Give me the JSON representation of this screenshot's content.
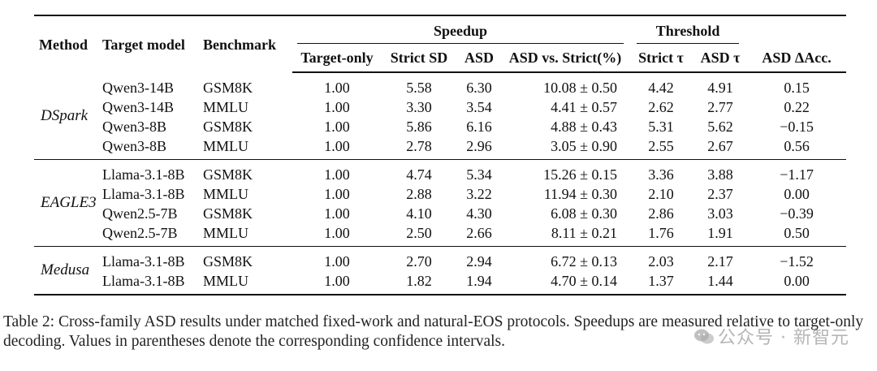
{
  "table": {
    "headers": {
      "method": "Method",
      "target_model": "Target model",
      "benchmark": "Benchmark",
      "speedup_group": "Speedup",
      "threshold_group": "Threshold",
      "target_only": "Target-only",
      "strict_sd": "Strict SD",
      "asd": "ASD",
      "asd_vs_strict": "ASD vs. Strict(%)",
      "strict_tau": "Strict τ",
      "asd_tau": "ASD τ",
      "asd_delta_acc": "ASD ΔAcc."
    },
    "groups": [
      {
        "method": "DSpark",
        "rows": [
          {
            "model": "Qwen3-14B",
            "bench": "GSM8K",
            "target_only": "1.00",
            "strict_sd": "5.58",
            "asd": "6.30",
            "asd_vs_strict": "10.08 ± 0.50",
            "strict_tau": "4.42",
            "asd_tau": "4.91",
            "delta_acc": "0.15"
          },
          {
            "model": "Qwen3-14B",
            "bench": "MMLU",
            "target_only": "1.00",
            "strict_sd": "3.30",
            "asd": "3.54",
            "asd_vs_strict": "4.41 ± 0.57",
            "strict_tau": "2.62",
            "asd_tau": "2.77",
            "delta_acc": "0.22"
          },
          {
            "model": "Qwen3-8B",
            "bench": "GSM8K",
            "target_only": "1.00",
            "strict_sd": "5.86",
            "asd": "6.16",
            "asd_vs_strict": "4.88 ± 0.43",
            "strict_tau": "5.31",
            "asd_tau": "5.62",
            "delta_acc": "−0.15"
          },
          {
            "model": "Qwen3-8B",
            "bench": "MMLU",
            "target_only": "1.00",
            "strict_sd": "2.78",
            "asd": "2.96",
            "asd_vs_strict": "3.05 ± 0.90",
            "strict_tau": "2.55",
            "asd_tau": "2.67",
            "delta_acc": "0.56"
          }
        ]
      },
      {
        "method": "EAGLE3",
        "rows": [
          {
            "model": "Llama-3.1-8B",
            "bench": "GSM8K",
            "target_only": "1.00",
            "strict_sd": "4.74",
            "asd": "5.34",
            "asd_vs_strict": "15.26 ± 0.15",
            "strict_tau": "3.36",
            "asd_tau": "3.88",
            "delta_acc": "−1.17"
          },
          {
            "model": "Llama-3.1-8B",
            "bench": "MMLU",
            "target_only": "1.00",
            "strict_sd": "2.88",
            "asd": "3.22",
            "asd_vs_strict": "11.94 ± 0.30",
            "strict_tau": "2.10",
            "asd_tau": "2.37",
            "delta_acc": "0.00"
          },
          {
            "model": "Qwen2.5-7B",
            "bench": "GSM8K",
            "target_only": "1.00",
            "strict_sd": "4.10",
            "asd": "4.30",
            "asd_vs_strict": "6.08 ± 0.30",
            "strict_tau": "2.86",
            "asd_tau": "3.03",
            "delta_acc": "−0.39"
          },
          {
            "model": "Qwen2.5-7B",
            "bench": "MMLU",
            "target_only": "1.00",
            "strict_sd": "2.50",
            "asd": "2.66",
            "asd_vs_strict": "8.11 ± 0.21",
            "strict_tau": "1.76",
            "asd_tau": "1.91",
            "delta_acc": "0.50"
          }
        ]
      },
      {
        "method": "Medusa",
        "rows": [
          {
            "model": "Llama-3.1-8B",
            "bench": "GSM8K",
            "target_only": "1.00",
            "strict_sd": "2.70",
            "asd": "2.94",
            "asd_vs_strict": "6.72 ± 0.13",
            "strict_tau": "2.03",
            "asd_tau": "2.17",
            "delta_acc": "−1.52"
          },
          {
            "model": "Llama-3.1-8B",
            "bench": "MMLU",
            "target_only": "1.00",
            "strict_sd": "1.82",
            "asd": "1.94",
            "asd_vs_strict": "4.70 ± 0.14",
            "strict_tau": "1.37",
            "asd_tau": "1.44",
            "delta_acc": "0.00"
          }
        ]
      }
    ]
  },
  "caption": "Table 2: Cross-family ASD results under matched fixed-work and natural-EOS protocols. Speedups are measured relative to target-only decoding. Values in parentheses denote the corresponding confidence intervals.",
  "watermark": {
    "text": "公众号 · 新智元",
    "icon": "wechat-logo-icon"
  }
}
